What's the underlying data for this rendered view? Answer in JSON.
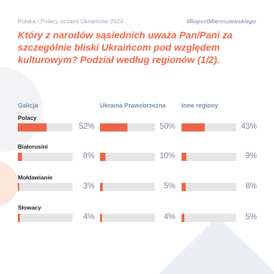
{
  "header": {
    "left": "Polska i Polacy oczami Ukraińców 2024",
    "right": "#RaportMieroszewskiego"
  },
  "question": "Który z narodów sąsiednich uważa Pan/Pani za szczególnie bliski Ukraińcom pod względem kulturowym? Podział według regionów (1/2).",
  "colors": {
    "accent": "#ec6548",
    "track": "#e5e5e5",
    "title": "#f0664a",
    "region": "#7a8ca8"
  },
  "chart_data": {
    "type": "bar",
    "orientation": "horizontal",
    "categories": [
      "Polacy",
      "Białorusini",
      "Mołdawianie",
      "Słowacy"
    ],
    "series": [
      {
        "name": "Galicja",
        "values": [
          52,
          8,
          3,
          4
        ],
        "labels": [
          "52%",
          "8%",
          "3%",
          "4%"
        ]
      },
      {
        "name": "Ukraina Prawobrzeżna",
        "values": [
          50,
          10,
          5,
          4
        ],
        "labels": [
          "50%",
          "10%",
          "5%",
          "4%"
        ]
      },
      {
        "name": "Inne regiony",
        "values": [
          43,
          9,
          8,
          5
        ],
        "labels": [
          "43%",
          "9%",
          "8%",
          "5%"
        ]
      }
    ],
    "xlim": [
      0,
      100
    ],
    "unit": "%"
  }
}
